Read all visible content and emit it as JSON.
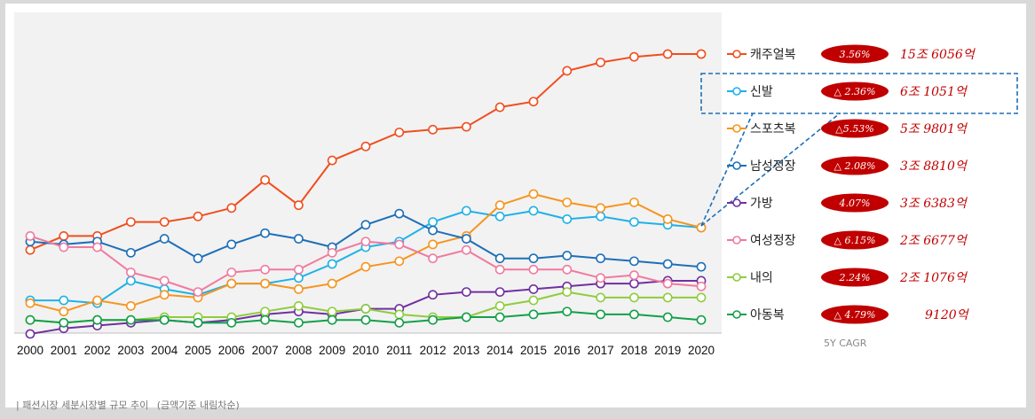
{
  "chart_data": {
    "type": "line",
    "x": [
      "2000",
      "2001",
      "2002",
      "2003",
      "2004",
      "2005",
      "2006",
      "2007",
      "2008",
      "2009",
      "2010",
      "2011",
      "2012",
      "2013",
      "2014",
      "2015",
      "2016",
      "2017",
      "2018",
      "2019",
      "2020"
    ],
    "ylim": [
      0,
      100
    ],
    "series": [
      {
        "name": "캐주얼복",
        "color": "#f04e1e",
        "cagr": "3.56%",
        "value_label": "15조 6056억",
        "values": [
          30,
          35,
          35,
          40,
          40,
          42,
          45,
          55,
          46,
          62,
          67,
          72,
          73,
          74,
          81,
          83,
          94,
          97,
          99,
          100,
          100
        ]
      },
      {
        "name": "신발",
        "color": "#1fb1e8",
        "cagr": "△ 2.36%",
        "value_label": "6조 1051억",
        "values": [
          12,
          12,
          11,
          19,
          16,
          14,
          18,
          18,
          20,
          25,
          31,
          33,
          40,
          44,
          42,
          44,
          41,
          42,
          40,
          39,
          38
        ]
      },
      {
        "name": "스포츠복",
        "color": "#f7941d",
        "cagr": "△5.53%",
        "value_label": "5조 9801억",
        "values": [
          11,
          8,
          12,
          10,
          14,
          13,
          18,
          18,
          16,
          18,
          24,
          26,
          32,
          35,
          46,
          50,
          47,
          45,
          47,
          41,
          38
        ]
      },
      {
        "name": "남성정장",
        "color": "#1d6fb8",
        "cagr": "△ 2.08%",
        "value_label": "3조 8810억",
        "values": [
          33,
          32,
          33,
          29,
          34,
          27,
          32,
          36,
          34,
          31,
          39,
          43,
          37,
          34,
          27,
          27,
          28,
          27,
          26,
          25,
          24
        ]
      },
      {
        "name": "가방",
        "color": "#7030a0",
        "cagr": "4.07%",
        "value_label": "3조 6383억",
        "values": [
          0,
          2,
          3,
          4,
          5,
          4,
          5,
          7,
          8,
          7,
          9,
          9,
          14,
          15,
          15,
          16,
          17,
          18,
          18,
          19,
          19
        ]
      },
      {
        "name": "여성정장",
        "color": "#f07aa0",
        "cagr": "△ 6.15%",
        "value_label": "2조 6677억",
        "values": [
          35,
          31,
          31,
          22,
          19,
          15,
          22,
          23,
          23,
          29,
          33,
          32,
          27,
          30,
          23,
          23,
          23,
          20,
          21,
          18,
          17
        ]
      },
      {
        "name": "내의",
        "color": "#8fcc3e",
        "cagr": "2.24%",
        "value_label": "2조 1076억",
        "values": [
          5,
          4,
          5,
          5,
          6,
          6,
          6,
          8,
          10,
          8,
          9,
          7,
          6,
          6,
          10,
          12,
          15,
          13,
          13,
          13,
          13
        ]
      },
      {
        "name": "아동복",
        "color": "#12a04a",
        "cagr": "△ 4.79%",
        "value_label": "9120억",
        "values": [
          5,
          4,
          5,
          5,
          5,
          4,
          4,
          5,
          4,
          5,
          5,
          4,
          5,
          6,
          6,
          7,
          8,
          7,
          7,
          6,
          5
        ]
      }
    ],
    "note": "5Y CAGR"
  },
  "caption": {
    "title": "| 패션시장 세분시장별 규모 추이",
    "subtitle": "(금액기준 내림차순)"
  }
}
